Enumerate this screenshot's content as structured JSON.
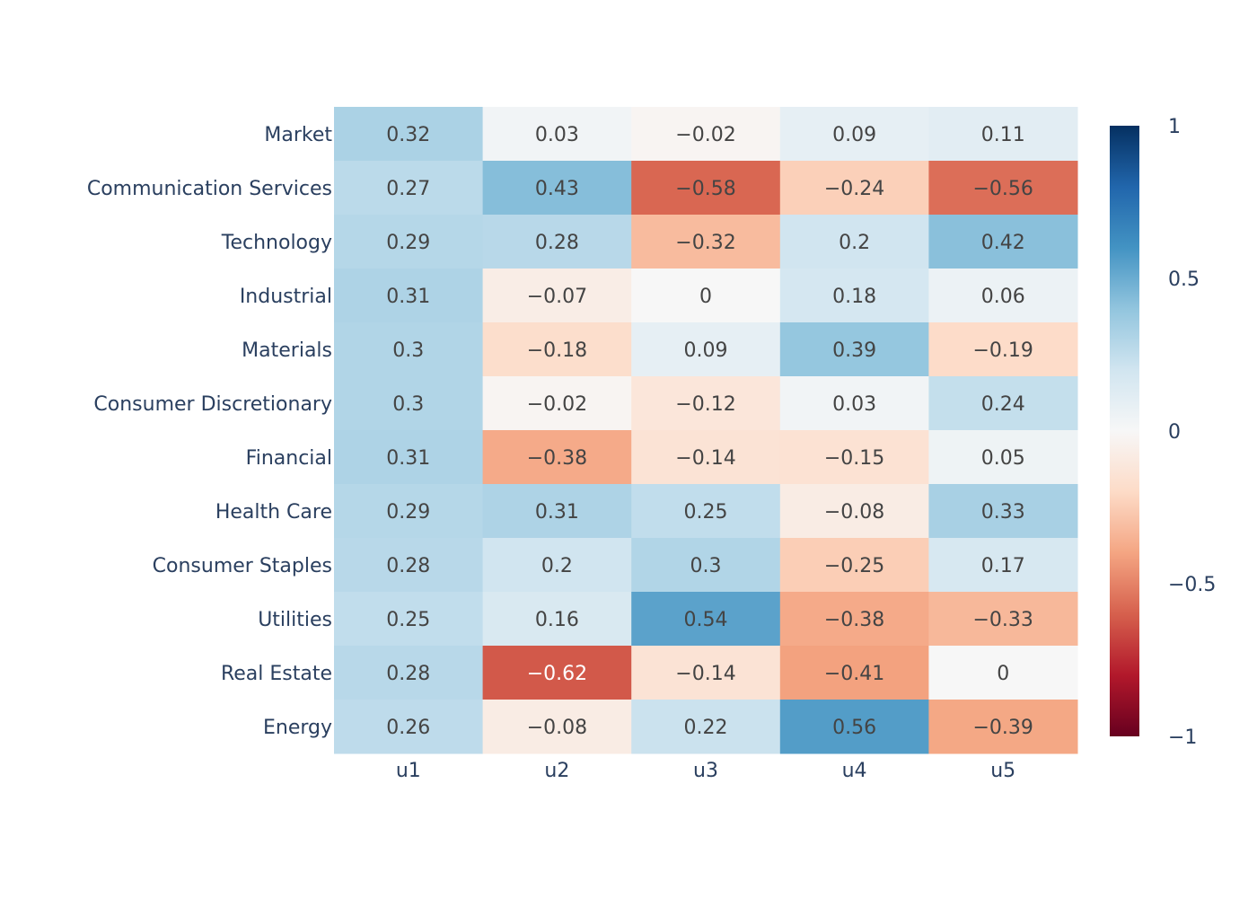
{
  "chart_data": {
    "type": "heatmap",
    "title": "",
    "xlabel": "",
    "ylabel": "",
    "rows": [
      "Market",
      "Communication Services",
      "Technology",
      "Industrial",
      "Materials",
      "Consumer Discretionary",
      "Financial",
      "Health Care",
      "Consumer Staples",
      "Utilities",
      "Real Estate",
      "Energy"
    ],
    "columns": [
      "u1",
      "u2",
      "u3",
      "u4",
      "u5"
    ],
    "values": [
      [
        0.32,
        0.03,
        -0.02,
        0.09,
        0.11
      ],
      [
        0.27,
        0.43,
        -0.58,
        -0.24,
        -0.56
      ],
      [
        0.29,
        0.28,
        -0.32,
        0.2,
        0.42
      ],
      [
        0.31,
        -0.07,
        0,
        0.18,
        0.06
      ],
      [
        0.3,
        -0.18,
        0.09,
        0.39,
        -0.19
      ],
      [
        0.3,
        -0.02,
        -0.12,
        0.03,
        0.24
      ],
      [
        0.31,
        -0.38,
        -0.14,
        -0.15,
        0.05
      ],
      [
        0.29,
        0.31,
        0.25,
        -0.08,
        0.33
      ],
      [
        0.28,
        0.2,
        0.3,
        -0.25,
        0.17
      ],
      [
        0.25,
        0.16,
        0.54,
        -0.38,
        -0.33
      ],
      [
        0.28,
        -0.62,
        -0.14,
        -0.41,
        0
      ],
      [
        0.26,
        -0.08,
        0.22,
        0.56,
        -0.39
      ]
    ],
    "value_labels": [
      [
        "0.32",
        "0.03",
        "−0.02",
        "0.09",
        "0.11"
      ],
      [
        "0.27",
        "0.43",
        "−0.58",
        "−0.24",
        "−0.56"
      ],
      [
        "0.29",
        "0.28",
        "−0.32",
        "0.2",
        "0.42"
      ],
      [
        "0.31",
        "−0.07",
        "0",
        "0.18",
        "0.06"
      ],
      [
        "0.3",
        "−0.18",
        "0.09",
        "0.39",
        "−0.19"
      ],
      [
        "0.3",
        "−0.02",
        "−0.12",
        "0.03",
        "0.24"
      ],
      [
        "0.31",
        "−0.38",
        "−0.14",
        "−0.15",
        "0.05"
      ],
      [
        "0.29",
        "0.31",
        "0.25",
        "−0.08",
        "0.33"
      ],
      [
        "0.28",
        "0.2",
        "0.3",
        "−0.25",
        "0.17"
      ],
      [
        "0.25",
        "0.16",
        "0.54",
        "−0.38",
        "−0.33"
      ],
      [
        "0.28",
        "−0.62",
        "−0.14",
        "−0.41",
        "0"
      ],
      [
        "0.26",
        "−0.08",
        "0.22",
        "0.56",
        "−0.39"
      ]
    ],
    "zmin": -1,
    "zmax": 1,
    "colorscale": "RdBu",
    "colorbar": {
      "tick_values": [
        1,
        0.5,
        0,
        -0.5,
        -1
      ],
      "tick_labels": [
        "1",
        "0.5",
        "0",
        "−0.5",
        "−1"
      ]
    },
    "grid": false
  }
}
